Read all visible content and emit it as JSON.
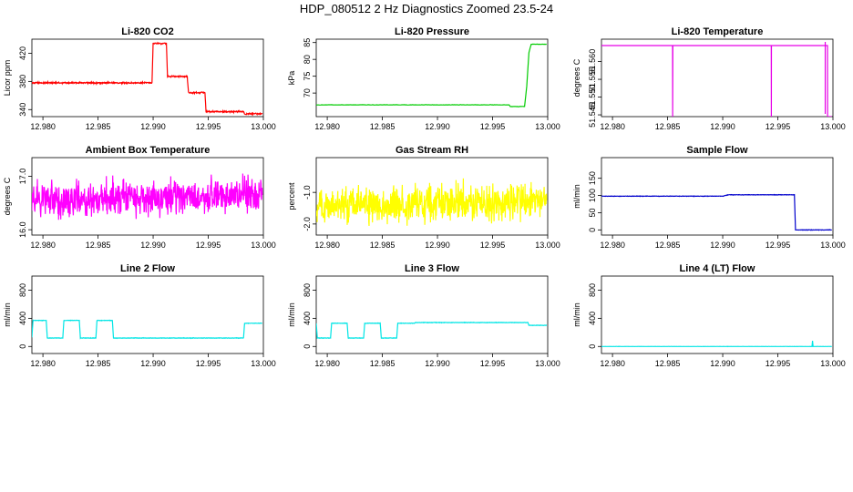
{
  "figure": {
    "title": "HDP_080512  2 Hz Diagnostics Zoomed 23.5-24"
  },
  "chart_data": [
    {
      "type": "line",
      "title": "Li-820 CO2",
      "xlabel": "",
      "ylabel": "Licor ppm",
      "color": "#ff0000",
      "xlim": [
        12.979,
        13.0
      ],
      "ylim": [
        330,
        440
      ],
      "x_ticks": [
        "12.980",
        "12.985",
        "12.990",
        "12.995",
        "13.000"
      ],
      "y_ticks": [
        "340",
        "380",
        "420"
      ],
      "series": [
        {
          "name": "CO2",
          "x": [
            12.979,
            12.9899,
            12.99,
            12.9912,
            12.9913,
            12.9931,
            12.9932,
            12.9947,
            12.9948,
            12.9982,
            12.9983,
            12.9999
          ],
          "y": [
            378,
            378,
            434,
            434,
            387,
            387,
            364,
            364,
            337,
            337,
            334,
            334
          ],
          "noise": 1.0
        }
      ]
    },
    {
      "type": "line",
      "title": "Li-820 Pressure",
      "xlabel": "",
      "ylabel": "kPa",
      "color": "#00cc00",
      "xlim": [
        12.979,
        13.0
      ],
      "ylim": [
        63,
        86
      ],
      "x_ticks": [
        "12.980",
        "12.985",
        "12.990",
        "12.995",
        "13.000"
      ],
      "y_ticks": [
        "70",
        "75",
        "80",
        "85"
      ],
      "series": [
        {
          "name": "Pressure",
          "x": [
            12.979,
            12.9965,
            12.9966,
            12.9979,
            12.9981,
            12.9983,
            12.9985,
            12.9999
          ],
          "y": [
            66.5,
            66.5,
            66.0,
            66.0,
            72,
            82,
            84.5,
            84.5
          ],
          "noise": 0.05
        }
      ]
    },
    {
      "type": "line",
      "title": "Li-820 Temperature",
      "xlabel": "",
      "ylabel": "degrees C",
      "color": "#e600e6",
      "xlim": [
        12.979,
        13.0
      ],
      "ylim": [
        51.5445,
        51.5663
      ],
      "x_ticks": [
        "12.980",
        "12.985",
        "12.990",
        "12.995",
        "13.000"
      ],
      "y_ticks": [
        "51.545",
        "51.550",
        "51.555",
        "51.560"
      ],
      "series": [
        {
          "name": "Temperature",
          "x": [
            12.979,
            12.98545,
            12.98546,
            12.98547,
            12.9944,
            12.99441,
            12.99442,
            12.9995,
            12.99951,
            12.99952,
            12.9999
          ],
          "y": [
            51.5645,
            51.5645,
            51.5445,
            51.5645,
            51.5645,
            51.5445,
            51.5645,
            51.5645,
            51.5445,
            51.5445,
            51.5445
          ],
          "noise": 0.0,
          "extra_drops": [
            12.9993
          ]
        }
      ]
    },
    {
      "type": "line",
      "title": "Ambient Box Temperature",
      "xlabel": "",
      "ylabel": "degrees C",
      "color": "#ff00ff",
      "xlim": [
        12.979,
        13.0
      ],
      "ylim": [
        15.9,
        17.35
      ],
      "x_ticks": [
        "12.980",
        "12.985",
        "12.990",
        "12.995",
        "13.000"
      ],
      "y_ticks": [
        "16.0",
        "17.0"
      ],
      "series": [
        {
          "name": "Ambient",
          "x": [
            12.979,
            12.9999
          ],
          "y": [
            16.55,
            16.65
          ],
          "noise": 0.32
        }
      ]
    },
    {
      "type": "line",
      "title": "Gas Stream RH",
      "xlabel": "",
      "ylabel": "percent",
      "color": "#ffff00",
      "xlim": [
        12.979,
        13.0
      ],
      "ylim": [
        -2.35,
        0.1
      ],
      "x_ticks": [
        "12.980",
        "12.985",
        "12.990",
        "12.995",
        "13.000"
      ],
      "y_ticks": [
        "-2.0",
        "-1.0"
      ],
      "series": [
        {
          "name": "RH",
          "x": [
            12.979,
            12.9999
          ],
          "y": [
            -1.45,
            -1.25
          ],
          "noise": 0.55
        }
      ]
    },
    {
      "type": "line",
      "title": "Sample Flow",
      "xlabel": "",
      "ylabel": "ml/min",
      "color": "#0000cc",
      "xlim": [
        12.979,
        13.0
      ],
      "ylim": [
        -15,
        210
      ],
      "x_ticks": [
        "12.980",
        "12.985",
        "12.990",
        "12.995",
        "13.000"
      ],
      "y_ticks": [
        "0",
        "50",
        "100",
        "150"
      ],
      "series": [
        {
          "name": "Sample Flow",
          "x": [
            12.979,
            12.99,
            12.9905,
            12.9965,
            12.9966,
            12.9999
          ],
          "y": [
            98,
            98,
            102,
            102,
            0,
            0
          ],
          "noise": 0.6
        }
      ]
    },
    {
      "type": "line",
      "title": "Line 2 Flow",
      "xlabel": "",
      "ylabel": "ml/min",
      "color": "#00e5e5",
      "xlim": [
        12.979,
        13.0
      ],
      "ylim": [
        -100,
        1000
      ],
      "x_ticks": [
        "12.980",
        "12.985",
        "12.990",
        "12.995",
        "13.000"
      ],
      "y_ticks": [
        "0",
        "400",
        "800"
      ],
      "series": [
        {
          "name": "Line 2",
          "x": [
            12.979,
            12.9791,
            12.9803,
            12.9804,
            12.9818,
            12.9819,
            12.9833,
            12.9834,
            12.9848,
            12.9849,
            12.9863,
            12.9864,
            12.9879,
            12.988,
            12.9982,
            12.9983,
            12.9999
          ],
          "y": [
            130,
            370,
            370,
            120,
            120,
            370,
            370,
            120,
            120,
            370,
            370,
            120,
            120,
            120,
            120,
            330,
            330
          ],
          "noise": 3
        }
      ]
    },
    {
      "type": "line",
      "title": "Line 3 Flow",
      "xlabel": "",
      "ylabel": "ml/min",
      "color": "#00e5e5",
      "xlim": [
        12.979,
        13.0
      ],
      "ylim": [
        -100,
        1000
      ],
      "x_ticks": [
        "12.980",
        "12.985",
        "12.990",
        "12.995",
        "13.000"
      ],
      "y_ticks": [
        "0",
        "400",
        "800"
      ],
      "series": [
        {
          "name": "Line 3",
          "x": [
            12.979,
            12.9791,
            12.9803,
            12.9804,
            12.9818,
            12.9819,
            12.9833,
            12.9834,
            12.9848,
            12.9849,
            12.9863,
            12.9864,
            12.9879,
            12.988,
            12.9982,
            12.9983,
            12.9999
          ],
          "y": [
            330,
            120,
            120,
            330,
            330,
            120,
            120,
            330,
            330,
            120,
            120,
            330,
            330,
            340,
            340,
            300,
            300
          ],
          "noise": 3
        }
      ]
    },
    {
      "type": "line",
      "title": "Line 4 (LT) Flow",
      "xlabel": "",
      "ylabel": "ml/min",
      "color": "#00e5e5",
      "xlim": [
        12.979,
        13.0
      ],
      "ylim": [
        -100,
        1000
      ],
      "x_ticks": [
        "12.980",
        "12.985",
        "12.990",
        "12.995",
        "13.000"
      ],
      "y_ticks": [
        "0",
        "400",
        "800"
      ],
      "series": [
        {
          "name": "Line 4",
          "x": [
            12.979,
            12.9981,
            12.99815,
            12.9982,
            12.9999
          ],
          "y": [
            0,
            0,
            80,
            0,
            0
          ],
          "noise": 1
        }
      ]
    }
  ]
}
